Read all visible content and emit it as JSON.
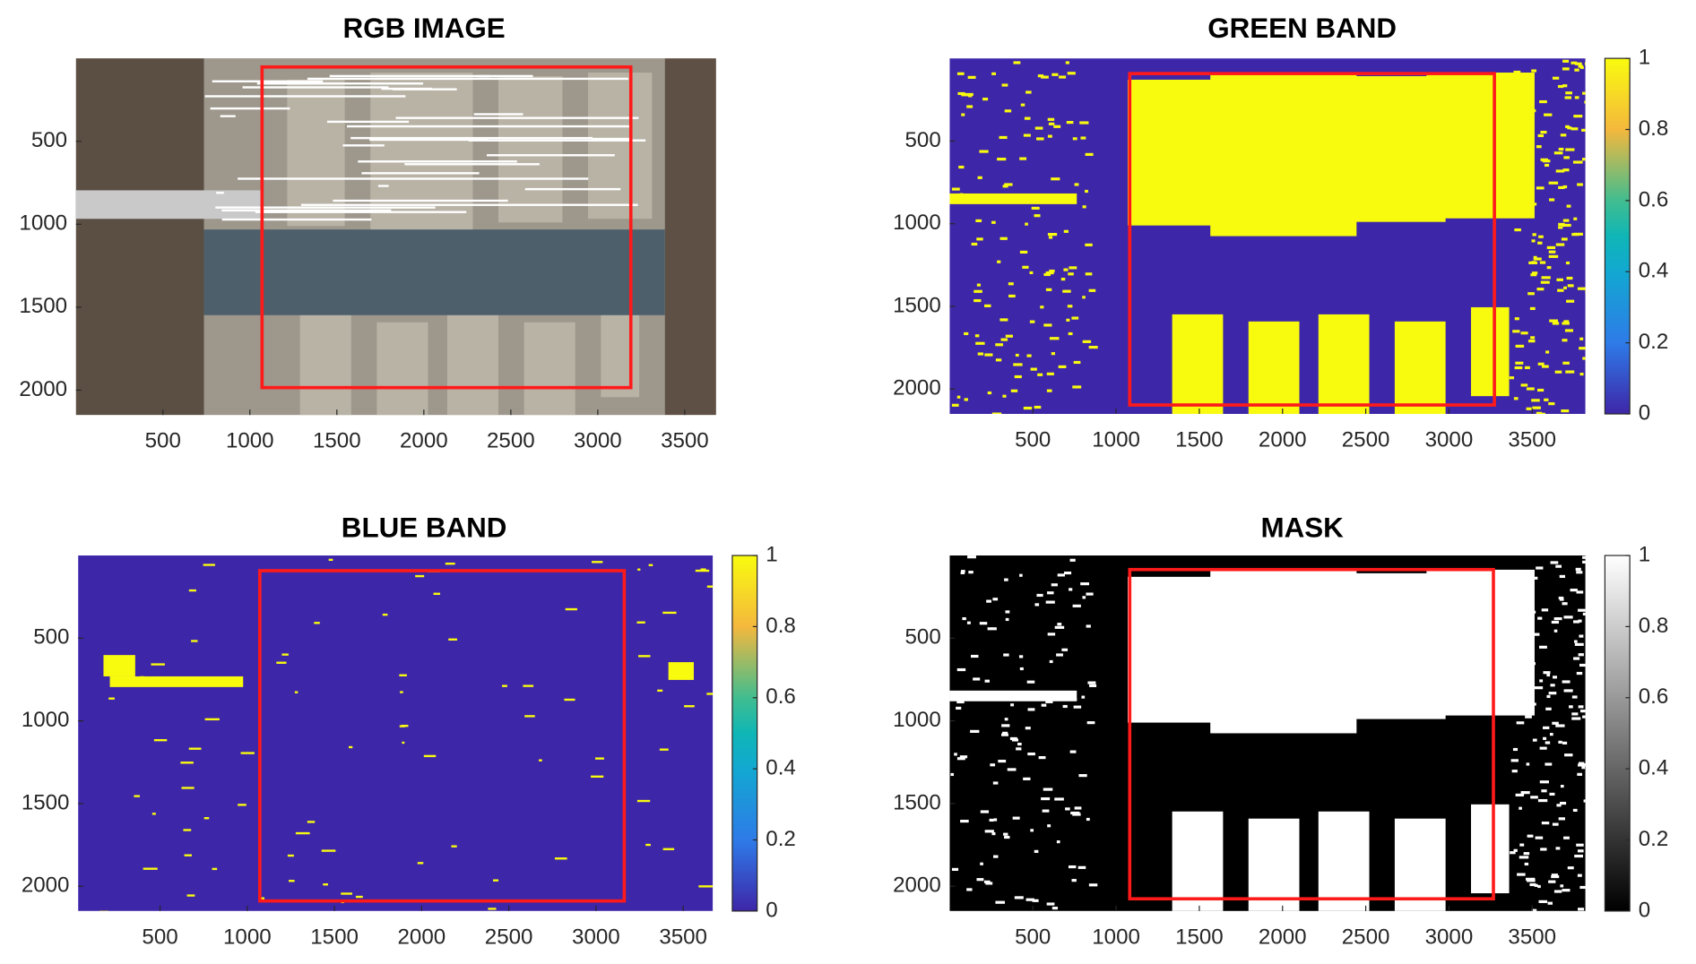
{
  "chart_data": [
    {
      "type": "image",
      "title": "RGB IMAGE",
      "colormap": "rgb",
      "xlim": [
        0,
        3680
      ],
      "ylim": [
        0,
        2150
      ],
      "xticks": [
        500,
        1000,
        1500,
        2000,
        2500,
        3000,
        3500
      ],
      "yticks": [
        500,
        1000,
        1500,
        2000
      ],
      "roi": {
        "x": [
          1070,
          3190
        ],
        "y": [
          52,
          1985
        ],
        "color": "#ff1a1a"
      }
    },
    {
      "type": "image",
      "title": "GREEN BAND",
      "colormap": "parula",
      "xlim": [
        0,
        3820
      ],
      "ylim": [
        0,
        2150
      ],
      "xticks": [
        500,
        1000,
        1500,
        2000,
        2500,
        3000,
        3500
      ],
      "yticks": [
        500,
        1000,
        1500,
        2000
      ],
      "clim": [
        0,
        1
      ],
      "cticks": [
        0,
        0.2,
        0.4,
        0.6,
        0.8,
        1
      ],
      "roi": {
        "x": [
          1082,
          3273
        ],
        "y": [
          92,
          2096
        ],
        "color": "#ff1a1a"
      }
    },
    {
      "type": "image",
      "title": "BLUE BAND",
      "colormap": "parula",
      "xlim": [
        30,
        3670
      ],
      "ylim": [
        0,
        2150
      ],
      "xticks": [
        500,
        1000,
        1500,
        2000,
        2500,
        3000,
        3500
      ],
      "yticks": [
        500,
        1000,
        1500,
        2000
      ],
      "clim": [
        0,
        1
      ],
      "cticks": [
        0,
        0.2,
        0.4,
        0.6,
        0.8,
        1
      ],
      "roi": {
        "x": [
          1072,
          3162
        ],
        "y": [
          92,
          2089
        ],
        "color": "#ff1a1a"
      }
    },
    {
      "type": "image",
      "title": "MASK",
      "colormap": "gray",
      "xlim": [
        0,
        3820
      ],
      "ylim": [
        0,
        2150
      ],
      "xticks": [
        500,
        1000,
        1500,
        2000,
        2500,
        3000,
        3500
      ],
      "yticks": [
        500,
        1000,
        1500,
        2000
      ],
      "clim": [
        0,
        1
      ],
      "cticks": [
        0,
        0.2,
        0.4,
        0.6,
        0.8,
        1
      ],
      "roi": {
        "x": [
          1082,
          3267
        ],
        "y": [
          85,
          2076
        ],
        "color": "#ff1a1a"
      }
    }
  ]
}
